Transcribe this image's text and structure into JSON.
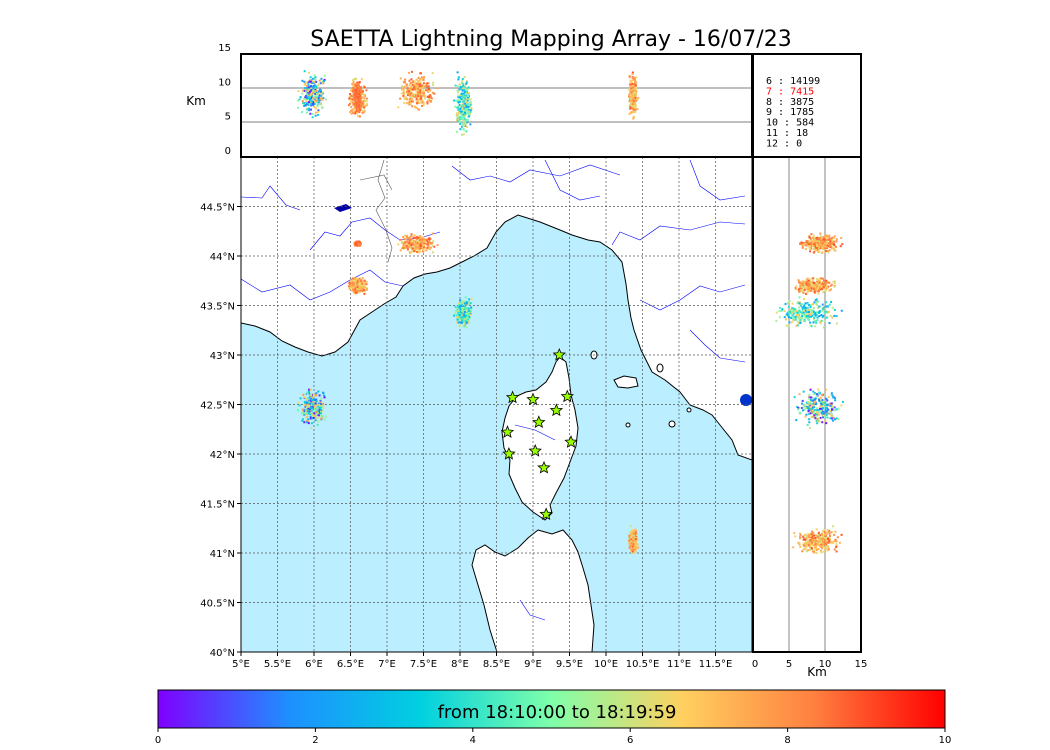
{
  "title": "SAETTA Lightning Mapping Array - 16/07/23",
  "colorbar": {
    "label": "from 18:10:00 to 18:19:59",
    "ticks": [
      "0",
      "2",
      "4",
      "6",
      "8",
      "10"
    ],
    "stops": [
      "#7f00ff",
      "#1e90ff",
      "#00d0e0",
      "#7fffaa",
      "#ffd060",
      "#ff8040",
      "#ff0000"
    ]
  },
  "colors": {
    "sea": "#bbeeff",
    "land": "#ffffff",
    "coast": "#000000",
    "rivers": "#0000ff",
    "grid": "#555555",
    "station_fill": "#99ff00"
  },
  "altitude_panel": {
    "ylabel": "Km",
    "yticks": [
      "15",
      "10",
      "5",
      "0"
    ]
  },
  "side_panel": {
    "xlabel": "Km",
    "xticks": [
      "0",
      "5",
      "10",
      "15"
    ]
  },
  "map": {
    "xticks": [
      "5°E",
      "5.5°E",
      "6°E",
      "6.5°E",
      "7°E",
      "7.5°E",
      "8°E",
      "8.5°E",
      "9°E",
      "9.5°E",
      "10°E",
      "10.5°E",
      "11°E",
      "11.5°E"
    ],
    "yticks": [
      "44.5°N",
      "44°N",
      "43.5°N",
      "43°N",
      "42.5°N",
      "42°N",
      "41.5°N",
      "41°N",
      "40.5°N",
      "40°N"
    ]
  },
  "station_counts": [
    {
      "n": "6",
      "v": "14199",
      "color": "#000000"
    },
    {
      "n": "7",
      "v": "7415",
      "color": "#ff0000"
    },
    {
      "n": "8",
      "v": "3875",
      "color": "#000000"
    },
    {
      "n": "9",
      "v": "1785",
      "color": "#000000"
    },
    {
      "n": "10",
      "v": "584",
      "color": "#000000"
    },
    {
      "n": "11",
      "v": "18",
      "color": "#000000"
    },
    {
      "n": "12",
      "v": "0",
      "color": "#000000"
    }
  ],
  "chart_data": {
    "type": "scatter",
    "title": "SAETTA Lightning Mapping Array - 16/07/23",
    "color_scale": {
      "label": "from 18:10:00 to 18:19:59",
      "range": [
        0,
        10
      ],
      "colormap": "rainbow"
    },
    "map_extent": {
      "lon": [
        5,
        12
      ],
      "lat": [
        40,
        45
      ]
    },
    "altitude_range_km": [
      0,
      15
    ],
    "stations": [
      {
        "lon": 9.36,
        "lat": 43.0
      },
      {
        "lon": 8.72,
        "lat": 42.57
      },
      {
        "lon": 9.0,
        "lat": 42.55
      },
      {
        "lon": 9.47,
        "lat": 42.58
      },
      {
        "lon": 9.32,
        "lat": 42.44
      },
      {
        "lon": 9.08,
        "lat": 42.32
      },
      {
        "lon": 8.65,
        "lat": 42.22
      },
      {
        "lon": 9.52,
        "lat": 42.12
      },
      {
        "lon": 9.03,
        "lat": 42.03
      },
      {
        "lon": 8.67,
        "lat": 42.0
      },
      {
        "lon": 9.15,
        "lat": 41.86
      },
      {
        "lon": 9.18,
        "lat": 41.39
      }
    ],
    "clusters": [
      {
        "lon": [
          5.75,
          6.2
        ],
        "lat": [
          42.25,
          42.7
        ],
        "alt": [
          5,
          13
        ],
        "time": [
          0,
          8
        ]
      },
      {
        "lon": [
          6.45,
          6.75
        ],
        "lat": [
          43.6,
          43.8
        ],
        "alt": [
          5,
          12
        ],
        "time": [
          6,
          9
        ]
      },
      {
        "lon": [
          6.55,
          6.65
        ],
        "lat": [
          44.1,
          44.15
        ],
        "alt": [
          6,
          11
        ],
        "time": [
          8,
          9
        ]
      },
      {
        "lon": [
          7.1,
          7.75
        ],
        "lat": [
          44.0,
          44.25
        ],
        "alt": [
          6,
          13
        ],
        "time": [
          6,
          9
        ]
      },
      {
        "lon": [
          7.9,
          8.2
        ],
        "lat": [
          43.25,
          43.6
        ],
        "alt": [
          2,
          13
        ],
        "time": [
          2,
          7
        ]
      },
      {
        "lon": [
          10.3,
          10.45
        ],
        "lat": [
          40.95,
          41.3
        ],
        "alt": [
          5,
          13
        ],
        "time": [
          6,
          9
        ]
      }
    ]
  }
}
